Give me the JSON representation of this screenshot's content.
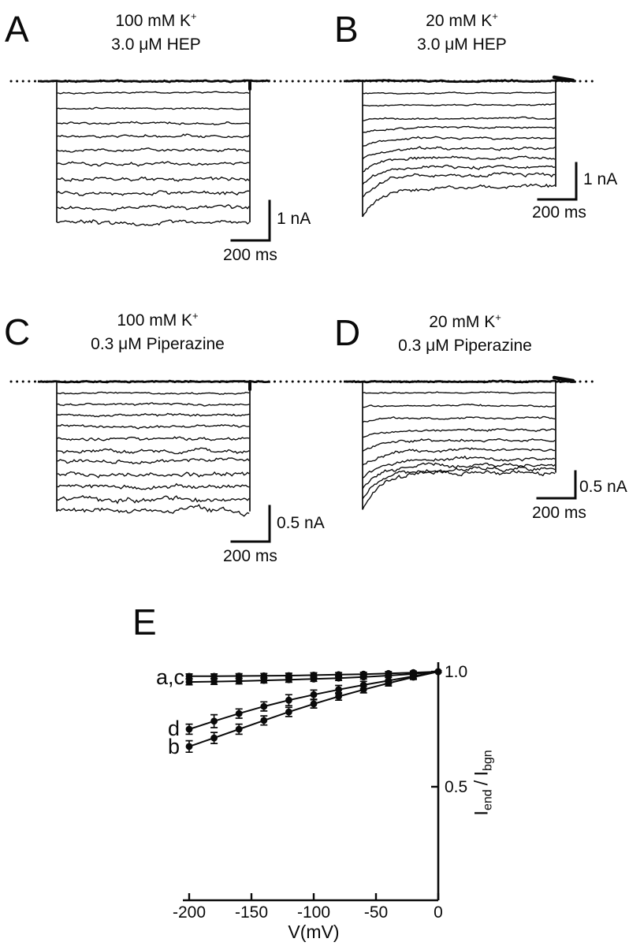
{
  "figure_background": "#ffffff",
  "ink_color": "#0a0a0a",
  "panels": {
    "a": {
      "letter": "A",
      "title_main": "100 mM K",
      "title_sup": "+",
      "title_line2": "3.0 μM HEP",
      "scale_v": "1 nA",
      "scale_h": "200 ms"
    },
    "b": {
      "letter": "B",
      "title_main": "20 mM K",
      "title_sup": "+",
      "title_line2": "3.0 μM HEP",
      "scale_v": "1 nA",
      "scale_h": "200 ms"
    },
    "c": {
      "letter": "C",
      "title_main": "100 mM K",
      "title_sup": "+",
      "title_line2": "0.3 μM Piperazine",
      "scale_v": "0.5 nA",
      "scale_h": "200 ms"
    },
    "d": {
      "letter": "D",
      "title_main": "20 mM K",
      "title_sup": "+",
      "title_line2": "0.3 μM Piperazine",
      "scale_v": "0.5 nA",
      "scale_h": "200 ms"
    },
    "e": {
      "letter": "E"
    }
  },
  "plot": {
    "xlabel": "V(mV)",
    "ylabel_i1": "I",
    "ylabel_sub_end": "end",
    "ylabel_slash": "/",
    "ylabel_i2": "I",
    "ylabel_sub_bgn": "bgn",
    "tick_1": "1.0",
    "tick_05": "0.5",
    "label_ac": "a,c",
    "label_d": "d",
    "label_b": "b"
  },
  "chart_data": [
    {
      "type": "line",
      "panel": "A",
      "title": "100 mM K+, 3.0 μM HEP",
      "description": "voltage-clamp current trace family, flat noisy traces below zero-current dotted line",
      "y_scale_bar": "1 nA",
      "x_scale_bar": "200 ms",
      "trace_amplitudes_nA": [
        0.3,
        0.7,
        1.06,
        1.4,
        1.74,
        2.1,
        2.48,
        2.84,
        3.2,
        3.58
      ],
      "relaxation_sag_nA": [
        0,
        0,
        0,
        0,
        0,
        0,
        0,
        0,
        0,
        0
      ]
    },
    {
      "type": "line",
      "panel": "B",
      "title": "20 mM K+, 3.0 μM HEP",
      "description": "voltage-clamp current trace family with initial relaxation decaying to steady state",
      "y_scale_bar": "1 nA",
      "x_scale_bar": "200 ms",
      "trace_amplitudes_nA": [
        0.33,
        0.65,
        1.02,
        1.28,
        1.57,
        1.85,
        2.11,
        2.37,
        2.59,
        2.91
      ],
      "relaxation_sag_nA": [
        0,
        0.02,
        0.07,
        0.13,
        0.22,
        0.3,
        0.39,
        0.48,
        0.61,
        0.83
      ]
    },
    {
      "type": "line",
      "panel": "C",
      "title": "100 mM K+, 0.3 μM Piperazine",
      "description": "voltage-clamp current trace family, flat noisy traces below zero-current dotted line",
      "y_scale_bar": "0.5 nA",
      "x_scale_bar": "200 ms",
      "trace_amplitudes_nA": [
        0.16,
        0.32,
        0.47,
        0.63,
        0.81,
        0.98,
        1.12,
        1.3,
        1.48,
        1.66,
        1.83
      ],
      "relaxation_sag_nA": [
        0,
        0,
        0,
        0,
        0,
        0,
        0,
        0,
        0,
        0,
        0
      ]
    },
    {
      "type": "line",
      "panel": "D",
      "title": "20 mM K+, 0.3 μM Piperazine",
      "description": "voltage-clamp current trace family with initial relaxation decaying to steady state",
      "y_scale_bar": "0.5 nA",
      "x_scale_bar": "200 ms",
      "trace_amplitudes_nA": [
        0.21,
        0.45,
        0.68,
        0.9,
        1.1,
        1.28,
        1.44,
        1.56,
        1.64,
        1.7
      ],
      "relaxation_sag_nA": [
        0,
        0.03,
        0.08,
        0.14,
        0.2,
        0.28,
        0.36,
        0.44,
        0.55,
        0.69
      ]
    },
    {
      "type": "scatter",
      "panel": "E",
      "xlabel": "V(mV)",
      "ylabel": "I_end / I_bgn",
      "x_ticks": [
        -200,
        -150,
        -100,
        -50,
        0
      ],
      "y_ticks": [
        1.0,
        0.5
      ],
      "xlim": [
        -205,
        0
      ],
      "ylim": [
        0,
        1.02
      ],
      "x": [
        -200,
        -180,
        -160,
        -140,
        -120,
        -100,
        -80,
        -60,
        -40,
        -20,
        0
      ],
      "series": [
        {
          "name": "a",
          "values": [
            0.98,
            0.98,
            0.981,
            0.982,
            0.983,
            0.985,
            0.987,
            0.989,
            0.992,
            0.996,
            1.0
          ],
          "errors": [
            0.01,
            0.01,
            0.01,
            0.01,
            0.01,
            0.01,
            0.009,
            0.008,
            0.008,
            0.006,
            0.004
          ]
        },
        {
          "name": "c",
          "values": [
            0.955,
            0.957,
            0.959,
            0.962,
            0.965,
            0.968,
            0.972,
            0.977,
            0.983,
            0.99,
            1.0
          ],
          "errors": [
            0.012,
            0.012,
            0.012,
            0.011,
            0.011,
            0.01,
            0.01,
            0.009,
            0.008,
            0.006,
            0.004
          ]
        },
        {
          "name": "d",
          "values": [
            0.75,
            0.785,
            0.818,
            0.849,
            0.876,
            0.9,
            0.922,
            0.942,
            0.961,
            0.98,
            1.0
          ],
          "errors": [
            0.022,
            0.028,
            0.02,
            0.02,
            0.024,
            0.02,
            0.018,
            0.016,
            0.014,
            0.01,
            0.004
          ]
        },
        {
          "name": "b",
          "values": [
            0.675,
            0.712,
            0.75,
            0.788,
            0.825,
            0.86,
            0.892,
            0.922,
            0.95,
            0.976,
            1.0
          ],
          "errors": [
            0.025,
            0.024,
            0.022,
            0.02,
            0.02,
            0.018,
            0.016,
            0.014,
            0.012,
            0.01,
            0.004
          ]
        }
      ],
      "series_labels": [
        "a,c",
        "d",
        "b"
      ],
      "legend_position": "left-of-curves",
      "grid": false
    }
  ]
}
